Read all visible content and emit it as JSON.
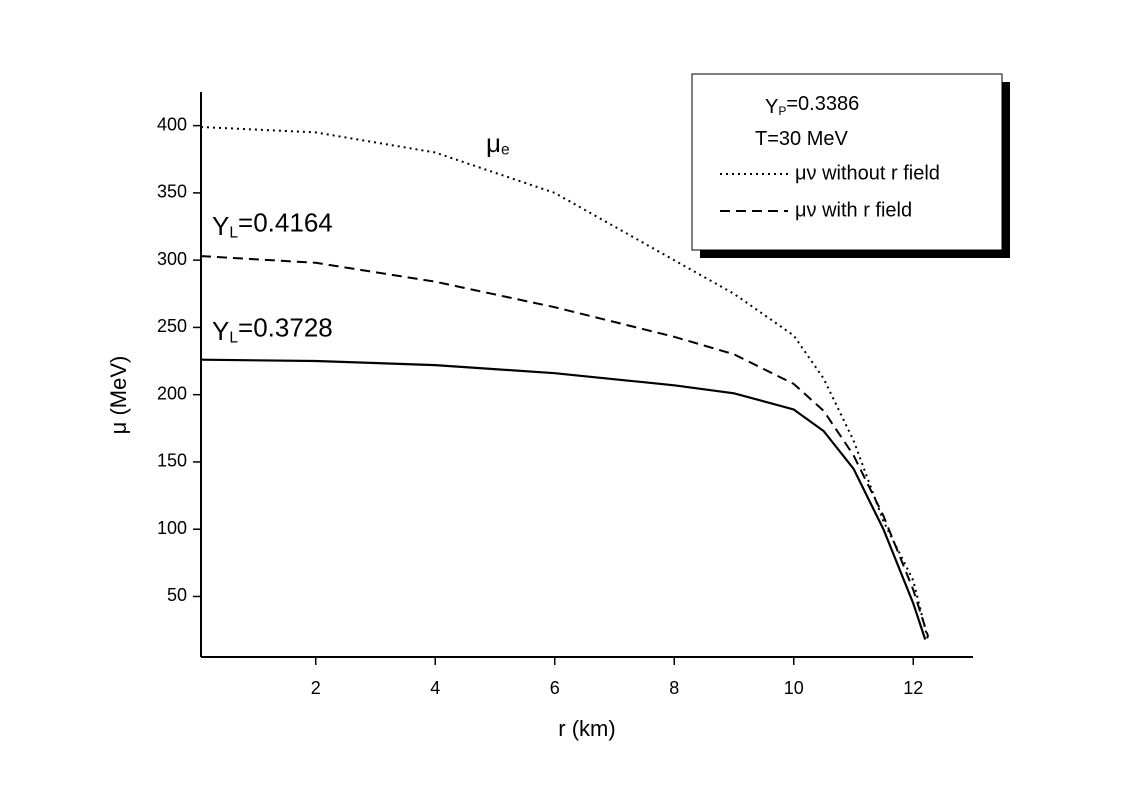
{
  "chart_data": {
    "type": "line",
    "x_label": "r (km)",
    "y_label": "μ (MeV)",
    "xlim": [
      0.08,
      13
    ],
    "ylim": [
      5,
      425
    ],
    "xticks": [
      2,
      4,
      6,
      8,
      10,
      12
    ],
    "yticks": [
      50,
      100,
      150,
      200,
      250,
      300,
      350,
      400
    ],
    "grid": false,
    "legend": "top-right",
    "legend_header": [
      {
        "main": "Y",
        "sub": "P",
        "rest": "=0.3386"
      },
      {
        "main": "T=30 MeV",
        "sub": "",
        "rest": ""
      }
    ],
    "annotations": [
      {
        "main": "μ",
        "sub": "e",
        "rest": ""
      },
      {
        "main": "Y",
        "sub": "L",
        "rest": "=0.4164"
      },
      {
        "main": "Y",
        "sub": "L",
        "rest": "=0.3728"
      }
    ],
    "series": [
      {
        "name": "μν without r field",
        "color": "#000000",
        "style": "dotted",
        "x": [
          0.08,
          2,
          4,
          6,
          8,
          9,
          10,
          10.5,
          11,
          11.5,
          12,
          12.25
        ],
        "values": [
          399,
          395,
          380,
          350,
          300,
          275,
          244,
          212,
          166,
          106,
          62,
          17
        ]
      },
      {
        "name": "μν with r field",
        "color": "#000000",
        "style": "dashed",
        "x": [
          0.08,
          2,
          4,
          6,
          8,
          9,
          10,
          10.5,
          11,
          11.5,
          12,
          12.25
        ],
        "values": [
          303,
          298,
          284,
          265,
          243,
          230,
          208,
          188,
          155,
          110,
          55,
          20
        ]
      },
      {
        "color": "#000000",
        "style": "solid",
        "x": [
          0.08,
          2,
          4,
          6,
          8,
          9,
          10,
          10.5,
          11,
          11.5,
          12,
          12.2
        ],
        "values": [
          226,
          225,
          222,
          216,
          207,
          201,
          189,
          173,
          145,
          100,
          45,
          18
        ]
      }
    ]
  }
}
